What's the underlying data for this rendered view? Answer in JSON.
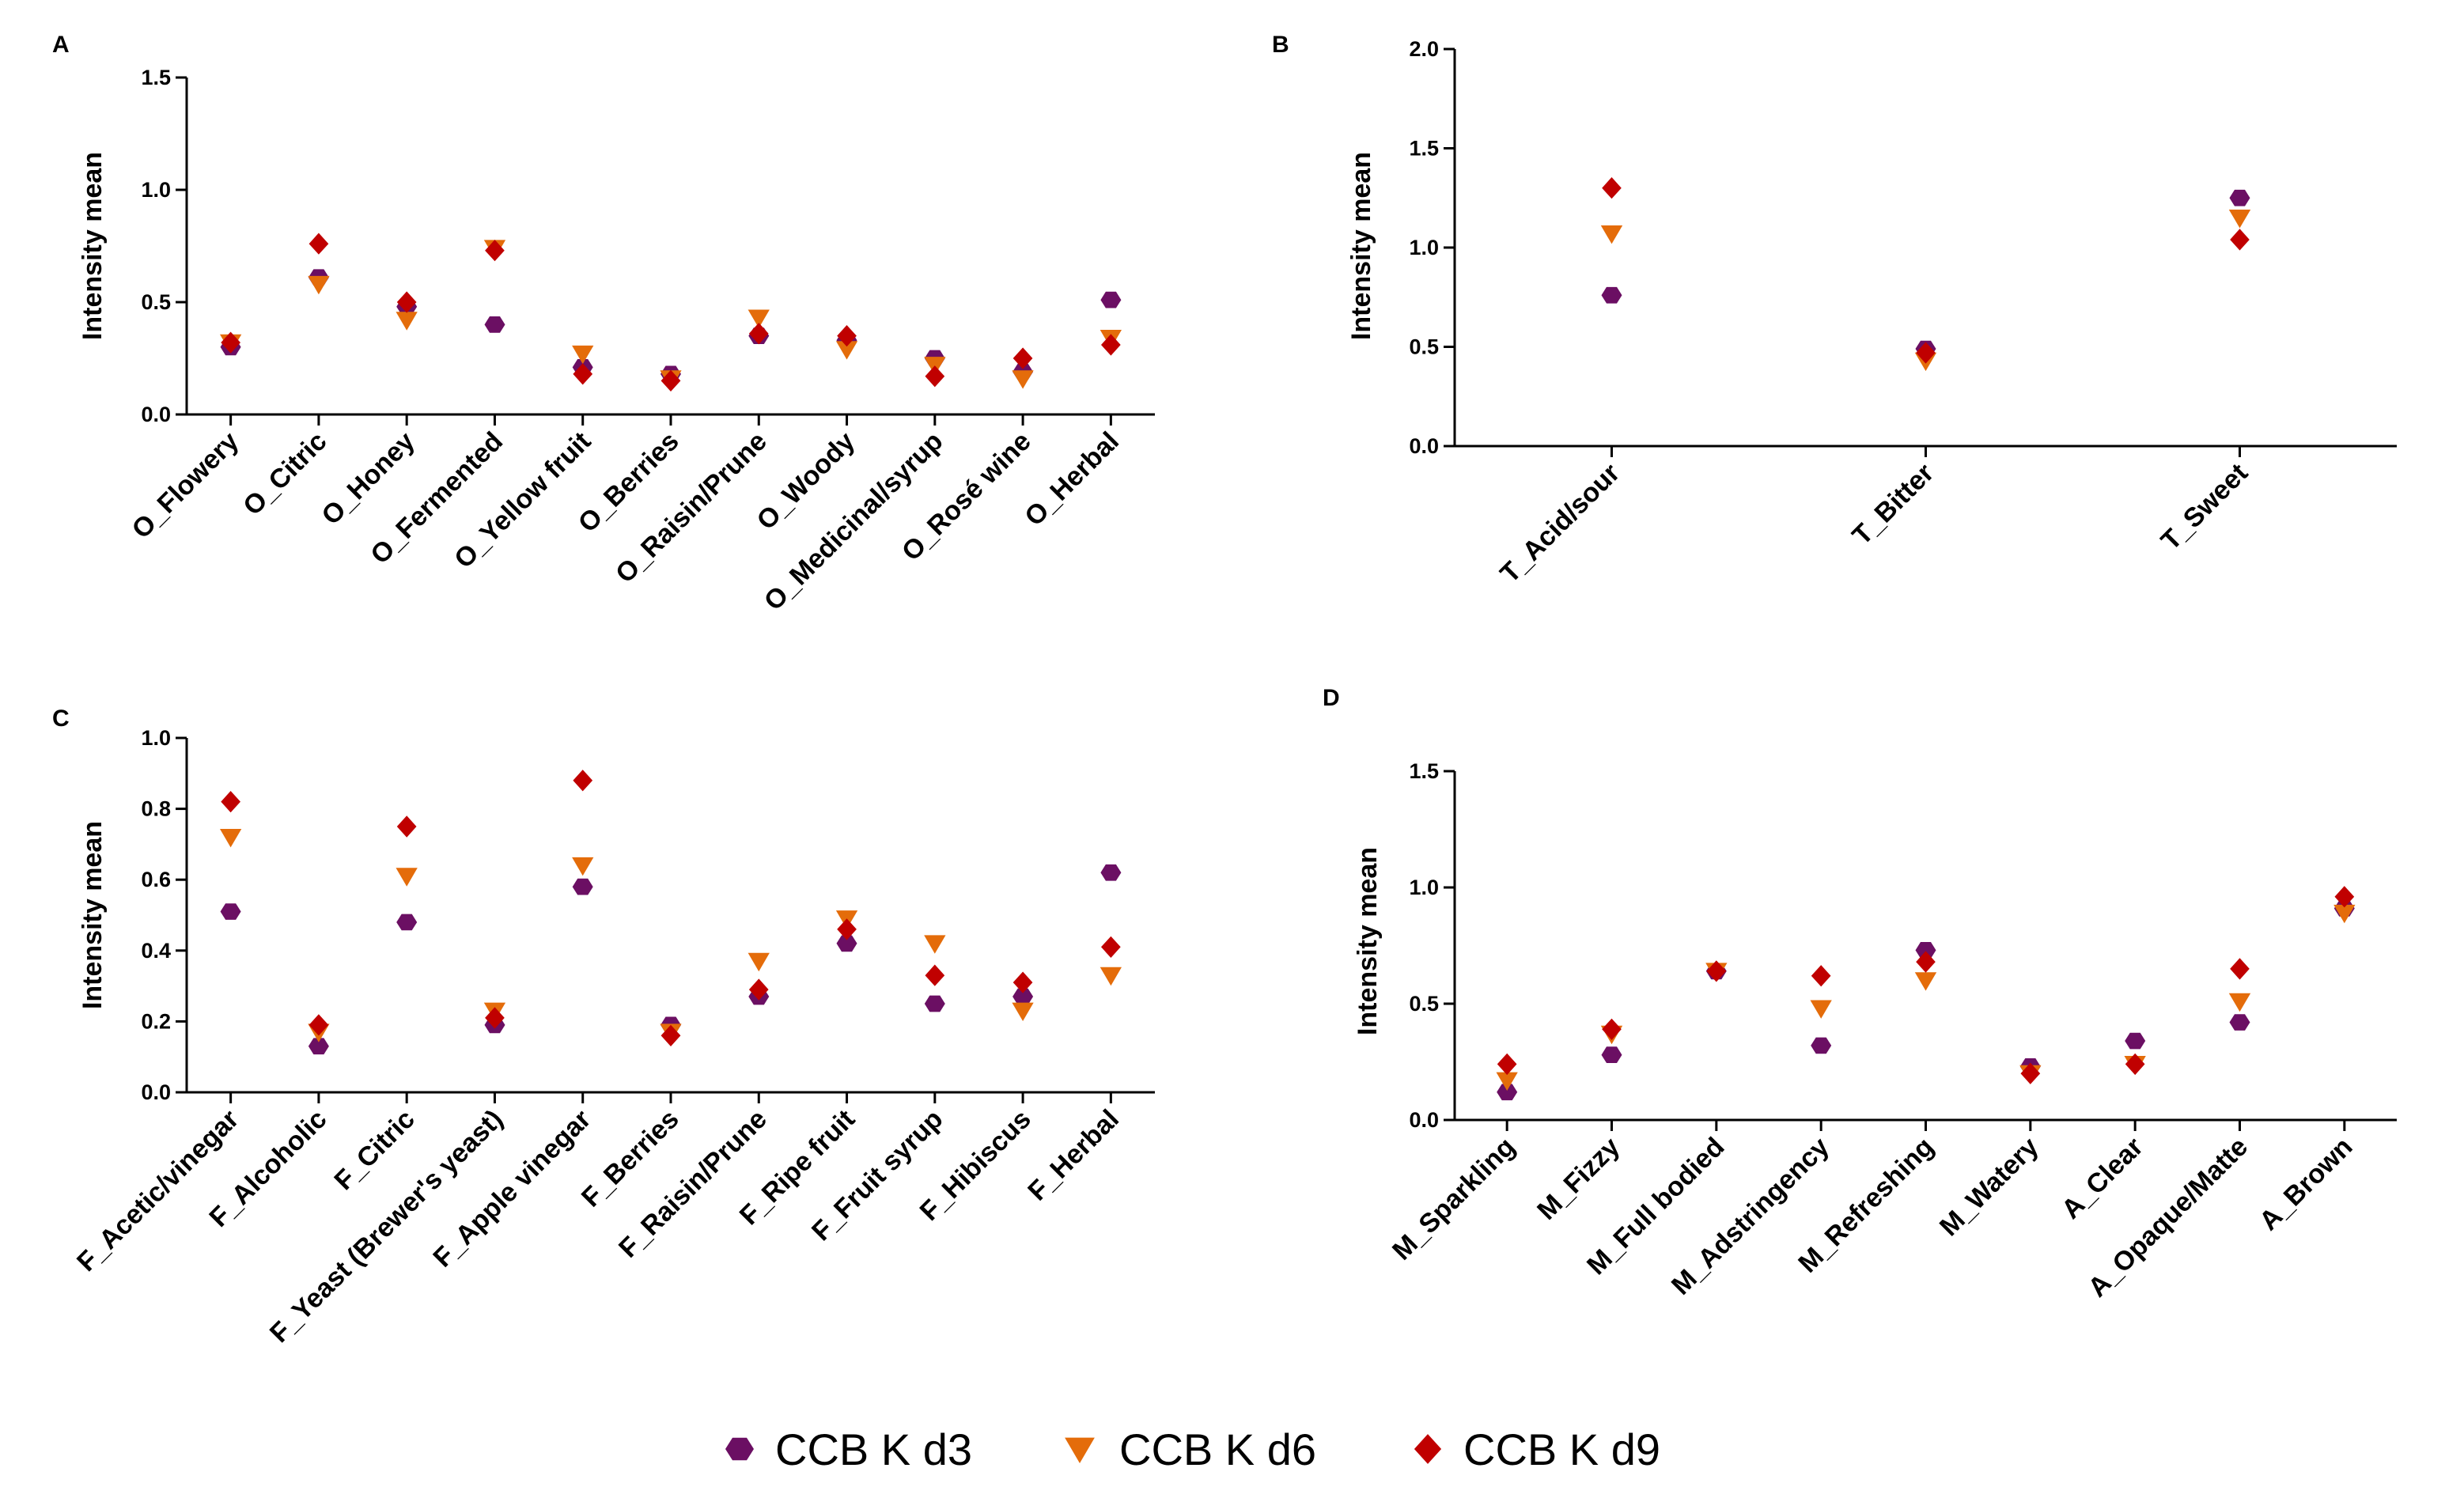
{
  "colors": {
    "CCB K d3": "#6b0f63",
    "CCB K d6": "#e46c0a",
    "CCB K d9": "#c00000"
  },
  "legend": [
    {
      "label": "CCB K d3",
      "marker": "hexagon"
    },
    {
      "label": "CCB K d6",
      "marker": "triangle-down"
    },
    {
      "label": "CCB K d9",
      "marker": "diamond"
    }
  ],
  "chart_data": [
    {
      "panel": "A",
      "type": "scatter",
      "ylabel": "Intensity mean",
      "ylim": [
        0,
        1.5
      ],
      "yticks": [
        "0.0",
        "0.5",
        "1.0",
        "1.5"
      ],
      "categories": [
        "O_Flowery",
        "O_Citric",
        "O_Honey",
        "O_Fermented",
        "O_Yellow fruit",
        "O_Berries",
        "O_Raisin/Prune",
        "O_Woody",
        "O_Medicinal/syrup",
        "O_Rosé wine",
        "O_Herbal"
      ],
      "series": [
        {
          "name": "CCB K d3",
          "values": [
            0.3,
            0.61,
            0.48,
            0.4,
            0.21,
            0.18,
            0.35,
            0.33,
            0.25,
            0.19,
            0.51
          ]
        },
        {
          "name": "CCB K d6",
          "values": [
            0.32,
            0.58,
            0.42,
            0.74,
            0.27,
            0.16,
            0.43,
            0.29,
            0.22,
            0.16,
            0.34
          ]
        },
        {
          "name": "CCB K d9",
          "values": [
            0.32,
            0.76,
            0.5,
            0.73,
            0.18,
            0.15,
            0.36,
            0.35,
            0.17,
            0.25,
            0.31
          ]
        }
      ]
    },
    {
      "panel": "B",
      "type": "scatter",
      "ylabel": "Intensity mean",
      "ylim": [
        0,
        2.0
      ],
      "yticks": [
        "0.0",
        "0.5",
        "1.0",
        "1.5",
        "2.0"
      ],
      "categories": [
        "T_Acid/sour",
        "T_Bitter",
        "T_Sweet"
      ],
      "series": [
        {
          "name": "CCB K d3",
          "values": [
            0.76,
            0.49,
            1.25
          ]
        },
        {
          "name": "CCB K d6",
          "values": [
            1.07,
            0.43,
            1.15
          ]
        },
        {
          "name": "CCB K d9",
          "values": [
            1.3,
            0.47,
            1.04
          ]
        }
      ]
    },
    {
      "panel": "C",
      "type": "scatter",
      "ylabel": "Intensity mean",
      "ylim": [
        0,
        1.0
      ],
      "yticks": [
        "0.0",
        "0.2",
        "0.4",
        "0.6",
        "0.8",
        "1.0"
      ],
      "categories": [
        "F_Acetic/vinegar",
        "F_Alcoholic",
        "F_Citric",
        "F_Yeast (Brewer's yeast)",
        "F_Apple vinegar",
        "F_Berries",
        "F_Raisin/Prune",
        "F_Ripe fruit",
        "F_Fruit syrup",
        "F_Hibiscus",
        "F_Herbal"
      ],
      "series": [
        {
          "name": "CCB K d3",
          "values": [
            0.51,
            0.13,
            0.48,
            0.19,
            0.58,
            0.19,
            0.27,
            0.42,
            0.25,
            0.27,
            0.62
          ]
        },
        {
          "name": "CCB K d6",
          "values": [
            0.72,
            0.17,
            0.61,
            0.23,
            0.64,
            0.17,
            0.37,
            0.49,
            0.42,
            0.23,
            0.33
          ]
        },
        {
          "name": "CCB K d9",
          "values": [
            0.82,
            0.19,
            0.75,
            0.21,
            0.88,
            0.16,
            0.29,
            0.46,
            0.33,
            0.31,
            0.41
          ]
        }
      ]
    },
    {
      "panel": "D",
      "type": "scatter",
      "ylabel": "Intensity mean",
      "ylim": [
        0,
        1.5
      ],
      "yticks": [
        "0.0",
        "0.5",
        "1.0",
        "1.5"
      ],
      "categories": [
        "M_Sparkling",
        "M_Fizzy",
        "M_Full bodied",
        "M_Adstringency",
        "M_Refreshing",
        "M_Watery",
        "A_Clear",
        "A_Opaque/Matte",
        "A_Brown"
      ],
      "series": [
        {
          "name": "CCB K d3",
          "values": [
            0.12,
            0.28,
            0.64,
            0.32,
            0.73,
            0.23,
            0.34,
            0.42,
            0.91
          ]
        },
        {
          "name": "CCB K d6",
          "values": [
            0.17,
            0.37,
            0.64,
            0.48,
            0.6,
            0.2,
            0.24,
            0.51,
            0.89
          ]
        },
        {
          "name": "CCB K d9",
          "values": [
            0.24,
            0.39,
            0.64,
            0.62,
            0.68,
            0.2,
            0.24,
            0.65,
            0.96
          ]
        }
      ]
    }
  ]
}
